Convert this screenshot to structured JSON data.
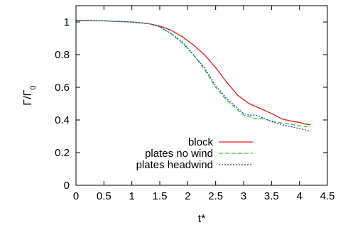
{
  "chart_data": {
    "type": "line",
    "xlabel": "t*",
    "ylabel": "Γ/Γ",
    "ylabel_sub": "0",
    "xlim": [
      0,
      4.5
    ],
    "ylim": [
      0,
      1.1
    ],
    "x_ticks": [
      "0",
      "0.5",
      "1",
      "1.5",
      "2",
      "2.5",
      "3",
      "3.5",
      "4",
      "4.5"
    ],
    "y_ticks": [
      "0",
      "0.2",
      "0.4",
      "0.6",
      "0.8",
      "1"
    ],
    "legend_position": "bottom-right",
    "series": [
      {
        "name": "block",
        "color": "#e41a1c",
        "dash": "solid",
        "x": [
          0,
          0.5,
          1.0,
          1.3,
          1.5,
          1.7,
          1.9,
          2.1,
          2.3,
          2.5,
          2.7,
          2.9,
          3.1,
          3.3,
          3.5,
          3.7,
          3.9,
          4.0,
          4.1,
          4.2
        ],
        "y": [
          1.01,
          1.007,
          1.0,
          0.99,
          0.975,
          0.95,
          0.91,
          0.86,
          0.8,
          0.72,
          0.63,
          0.55,
          0.5,
          0.47,
          0.44,
          0.405,
          0.39,
          0.385,
          0.375,
          0.37
        ]
      },
      {
        "name": "plates no wind",
        "color": "#2ecc40",
        "dash": "dashed",
        "x": [
          0,
          0.5,
          1.0,
          1.3,
          1.5,
          1.7,
          1.9,
          2.1,
          2.3,
          2.5,
          2.7,
          2.9,
          3.0,
          3.1,
          3.2,
          3.3,
          3.5,
          3.7,
          3.9,
          4.1,
          4.2
        ],
        "y": [
          1.01,
          1.007,
          1.0,
          0.99,
          0.97,
          0.93,
          0.87,
          0.8,
          0.71,
          0.6,
          0.52,
          0.46,
          0.43,
          0.42,
          0.41,
          0.41,
          0.395,
          0.38,
          0.37,
          0.36,
          0.355
        ]
      },
      {
        "name": "plates headwind",
        "color": "#1f3fbf",
        "dash": "dotted",
        "x": [
          0,
          0.5,
          1.0,
          1.3,
          1.5,
          1.7,
          1.9,
          2.1,
          2.3,
          2.5,
          2.7,
          2.9,
          3.0,
          3.1,
          3.2,
          3.3,
          3.5,
          3.7,
          3.9,
          4.1,
          4.2
        ],
        "y": [
          1.01,
          1.007,
          1.0,
          0.99,
          0.97,
          0.93,
          0.88,
          0.8,
          0.72,
          0.61,
          0.53,
          0.47,
          0.44,
          0.43,
          0.43,
          0.42,
          0.39,
          0.37,
          0.355,
          0.34,
          0.33
        ]
      }
    ]
  }
}
